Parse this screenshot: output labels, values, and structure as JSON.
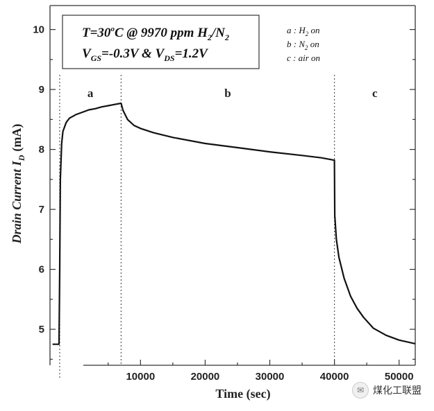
{
  "chart_data": {
    "type": "line",
    "title": "",
    "xlabel": "Time (sec)",
    "ylabel": "Drain Current I",
    "ylabel_sub": "D",
    "ylabel_unit": "(mA)",
    "xlim": [
      -4000,
      52500
    ],
    "ylim": [
      4.4,
      10.4
    ],
    "xticks": [
      10000,
      20000,
      30000,
      40000,
      50000
    ],
    "yticks": [
      5,
      6,
      7,
      8,
      9,
      10
    ],
    "grid": false,
    "regions": [
      {
        "label": "a",
        "x_start": -2500,
        "x_end": 7000
      },
      {
        "label": "b",
        "x_start": 7000,
        "x_end": 40000
      },
      {
        "label": "c",
        "x_start": 40000,
        "x_end": 52500
      }
    ],
    "series": [
      {
        "x": [
          -3600,
          -2600,
          -2500,
          -2400,
          -2200,
          -2000,
          -1500,
          -1000,
          0,
          1000,
          2000,
          3000,
          4000,
          5000,
          6000,
          7000,
          7300,
          8000,
          9000,
          10000,
          12000,
          15000,
          20000,
          25000,
          30000,
          35000,
          38000,
          40000,
          40050,
          40300,
          40700,
          41500,
          42500,
          43500,
          44500,
          46000,
          48000,
          50000,
          52500
        ],
        "y": [
          4.75,
          4.75,
          6.0,
          7.5,
          8.1,
          8.3,
          8.45,
          8.52,
          8.58,
          8.62,
          8.66,
          8.68,
          8.71,
          8.73,
          8.75,
          8.77,
          8.65,
          8.5,
          8.4,
          8.35,
          8.28,
          8.2,
          8.1,
          8.03,
          7.96,
          7.9,
          7.86,
          7.82,
          6.9,
          6.5,
          6.2,
          5.85,
          5.55,
          5.35,
          5.2,
          5.02,
          4.9,
          4.82,
          4.76
        ]
      }
    ],
    "annotation_box": {
      "line1_a": "T=30",
      "line1_sup": "o",
      "line1_b": "C @ 9970 ppm H",
      "line1_sub": "2",
      "line1_c": "/N",
      "line1_sub2": "2",
      "line2_a": "V",
      "line2_sub": "GS",
      "line2_b": "=-0.3V & V",
      "line2_sub2": "DS",
      "line2_c": "=1.2V"
    },
    "legend": [
      {
        "pre": "a : H",
        "sub": "2",
        "post": " on"
      },
      {
        "pre": "b : N",
        "sub": "2",
        "post": " on"
      },
      {
        "pre": "c : air on",
        "sub": "",
        "post": ""
      }
    ]
  },
  "watermark": {
    "icon": "wechat-icon",
    "text": "煤化工联盟"
  }
}
